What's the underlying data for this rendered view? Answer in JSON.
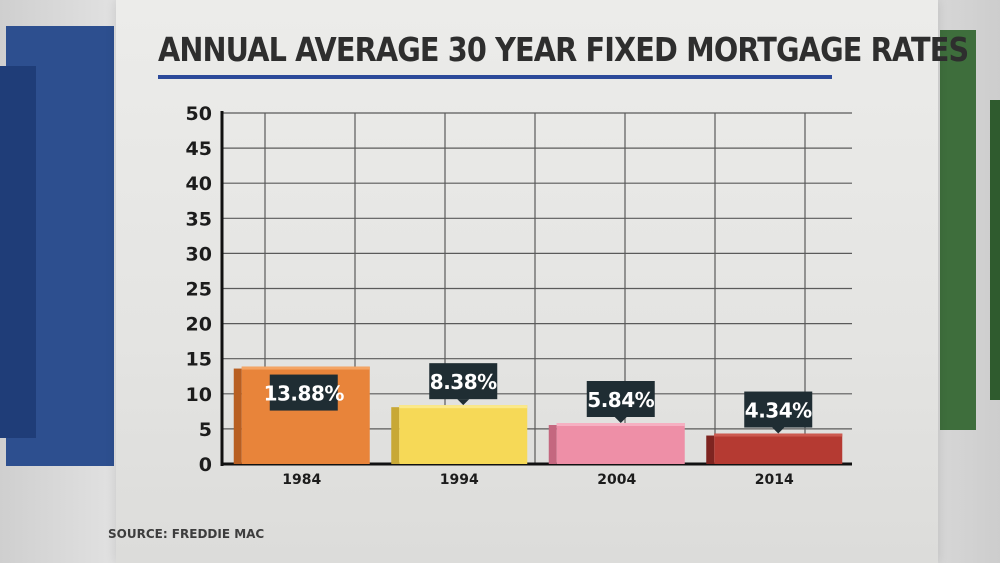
{
  "header": {
    "title": "ANNUAL AVERAGE 30 YEAR FIXED MORTGAGE RATES"
  },
  "footer": {
    "source": "SOURCE: FREDDIE MAC"
  },
  "chart_data": {
    "type": "bar",
    "title": "ANNUAL AVERAGE 30 YEAR FIXED MORTGAGE RATES",
    "xlabel": "",
    "ylabel": "",
    "categories": [
      "1984",
      "1994",
      "2004",
      "2014"
    ],
    "values": [
      13.88,
      8.38,
      5.84,
      4.34
    ],
    "data_labels": [
      "13.88%",
      "8.38%",
      "5.84%",
      "4.34%"
    ],
    "ylim": [
      0,
      50
    ],
    "yticks": [
      0,
      5,
      10,
      15,
      20,
      25,
      30,
      35,
      40,
      45,
      50
    ],
    "grid": true,
    "legend": "none",
    "bar_colors": [
      {
        "front": "#e8843a",
        "side": "#b85f22",
        "top": "#f4a464"
      },
      {
        "front": "#f6d957",
        "side": "#c8a836",
        "top": "#fbe98a"
      },
      {
        "front": "#ee8fa7",
        "side": "#c4677f",
        "top": "#f6b0c2"
      },
      {
        "front": "#b53a32",
        "side": "#7e2420",
        "top": "#cc5a50"
      }
    ],
    "label_box_color": "#1f2d33",
    "grid_color": "#5a5a5a"
  }
}
